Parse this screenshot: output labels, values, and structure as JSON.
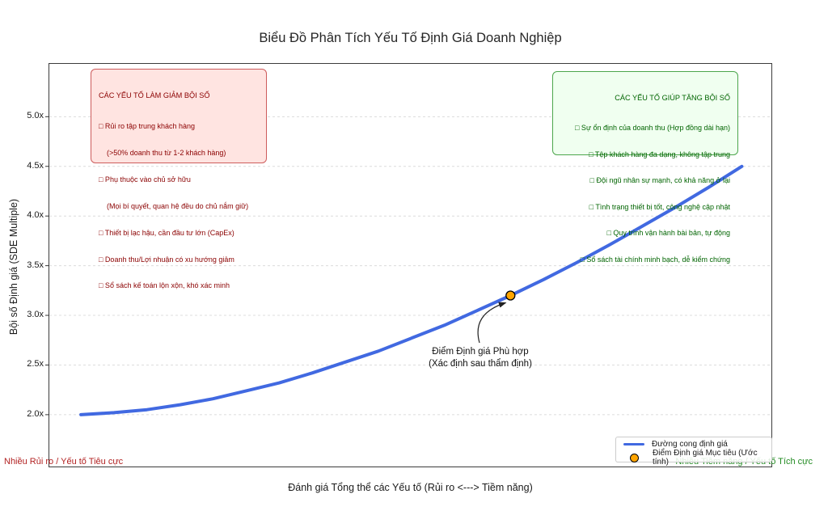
{
  "chart_data": {
    "type": "line",
    "title": "Biểu Đồ Phân Tích Yếu Tố Định Giá Doanh Nghiệp",
    "xlabel": "Đánh giá Tổng thể các Yếu tố (Rủi ro <---> Tiềm năng)",
    "ylabel": "Bội số Định giá (SDE Multiple)",
    "x": [
      0,
      0.5,
      1,
      1.5,
      2,
      2.5,
      3,
      3.5,
      4,
      4.5,
      5,
      5.5,
      6,
      6.5,
      7,
      7.5,
      8,
      8.5,
      9,
      9.5,
      10
    ],
    "series": [
      {
        "name": "Đường cong định giá",
        "color": "#4169E1",
        "values": [
          2.0,
          2.02,
          2.05,
          2.1,
          2.16,
          2.24,
          2.32,
          2.42,
          2.53,
          2.64,
          2.77,
          2.9,
          3.05,
          3.2,
          3.36,
          3.53,
          3.71,
          3.9,
          4.09,
          4.29,
          4.5
        ]
      }
    ],
    "point": {
      "x": 6.5,
      "y": 3.2,
      "label": "Điểm Định giá Mục tiêu (Ước tính)",
      "color": "#FFA500",
      "edge_color": "#000000"
    },
    "annotation": {
      "line1": "Điểm Định giá Phù hợp",
      "line2": "(Xác định sau thẩm định)"
    },
    "yticks": [
      "2.0x",
      "2.5x",
      "3.0x",
      "3.5x",
      "4.0x",
      "4.5x",
      "5.0x"
    ],
    "xlim": [
      -0.49,
      10.46
    ],
    "ylim": [
      1.47,
      5.54
    ],
    "grid": true,
    "grid_style": "dashed",
    "legend_position": "lower right"
  },
  "risk_box": {
    "title": "CÁC YẾU TỐ LÀM GIẢM BỘI SỐ",
    "colors": {
      "bg": "#FFE4E1",
      "border": "#CD5C5C",
      "text": "#8B0000"
    },
    "lines": [
      "□ Rủi ro tập trung khách hàng",
      "    (>50% doanh thu từ 1-2 khách hàng)",
      "□ Phụ thuộc vào chủ sở hữu",
      "    (Mọi bí quyết, quan hệ đều do chủ nắm giữ)",
      "□ Thiết bị lạc hậu, cần đầu tư lớn (CapEx)",
      "□ Doanh thu/Lợi nhuận có xu hướng giảm",
      "□ Sổ sách kế toán lộn xộn, khó xác minh"
    ]
  },
  "boost_box": {
    "title": "CÁC YẾU TỐ GIÚP TĂNG BỘI SỐ",
    "colors": {
      "bg": "#F0FFF0",
      "border": "#4CA64C",
      "text": "#006400"
    },
    "lines": [
      "□ Sự ổn định của doanh thu (Hợp đồng dài hạn)",
      "□ Tệp khách hàng đa dạng, không tập trung",
      "□ Đội ngũ nhân sự mạnh, có khả năng ở lại",
      "□ Tình trạng thiết bị tốt, công nghệ cập nhật",
      "□ Quy trình vận hành bài bản, tự động",
      "□ Sổ sách tài chính minh bạch, dễ kiểm chứng"
    ]
  },
  "corner_labels": {
    "left": "Nhiều Rủi ro / Yếu tố Tiêu cực",
    "left_color": "#B22222",
    "right": "Nhiều Tiềm năng / Yếu tố Tích cực",
    "right_color": "#228B22"
  }
}
